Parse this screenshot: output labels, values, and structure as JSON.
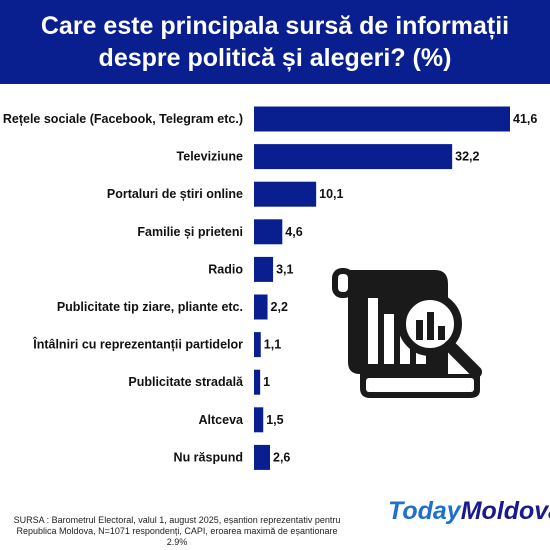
{
  "title": "Care este principala sursă de informații despre politică și alegeri? (%)",
  "chart_data": {
    "type": "bar",
    "orientation": "horizontal",
    "title": "Care este principala sursă de informații despre politică și alegeri? (%)",
    "categories": [
      "Rețele sociale (Facebook, Telegram etc.)",
      "Televiziune",
      "Portaluri de știri online",
      "Familie și prieteni",
      "Radio",
      "Publicitate tip ziare, pliante etc.",
      "Întâlniri cu reprezentanții partidelor",
      "Publicitate stradală",
      "Altceva",
      "Nu răspund"
    ],
    "values": [
      41.6,
      32.2,
      10.1,
      4.6,
      3.1,
      2.2,
      1.1,
      1,
      1.5,
      2.6
    ],
    "value_labels": [
      "41,6",
      "32,2",
      "10,1",
      "4,6",
      "3,1",
      "2,2",
      "1,1",
      "1",
      "1,5",
      "2,6"
    ],
    "bar_color": "#0a1f8f",
    "xlim": [
      0,
      41.6
    ],
    "grid": false,
    "legend": "none"
  },
  "source_text": "SURSA : Barometrul Electoral, valul 1, august 2025, eșantion reprezentativ pentru Republica Moldova, N=1071 respondenți, CAPI, eroarea maximă de eșantionare 2.9%",
  "logo": {
    "part1": "Today",
    "part2": "Moldova"
  },
  "colors": {
    "header_bg": "#0a1f8f",
    "header_text": "#ffffff",
    "logo_light": "#1d6fd0",
    "logo_dark": "#1a1a8c"
  },
  "icons": {
    "illustration": "document-chart-magnifier-icon"
  }
}
